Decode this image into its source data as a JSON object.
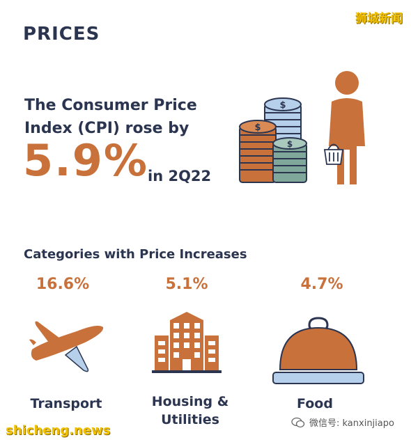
{
  "header": {
    "section_title": "PRICES",
    "watermark_top": "狮城新闻"
  },
  "headline": {
    "line1": "The Consumer Price",
    "line2": "Index (CPI) rose by",
    "value": "5.9%",
    "period": "in 2Q22"
  },
  "categories": {
    "heading": "Categories with Price Increases",
    "items": [
      {
        "pct": "16.6%",
        "label_line1": "Transport",
        "label_line2": "",
        "icon": "airplane-icon"
      },
      {
        "pct": "5.1%",
        "label_line1": "Housing &",
        "label_line2": "Utilities",
        "icon": "buildings-icon"
      },
      {
        "pct": "4.7%",
        "label_line1": "Food",
        "label_line2": "",
        "icon": "food-cloche-icon"
      }
    ]
  },
  "footer": {
    "watermark_left": "shicheng.news",
    "watermark_right": "微信号: kanxinjiapo"
  },
  "colors": {
    "accent": "#c8713a",
    "navy": "#2b3550",
    "coin_blue": "#b6d0ec",
    "coin_green": "#7fa89a"
  }
}
